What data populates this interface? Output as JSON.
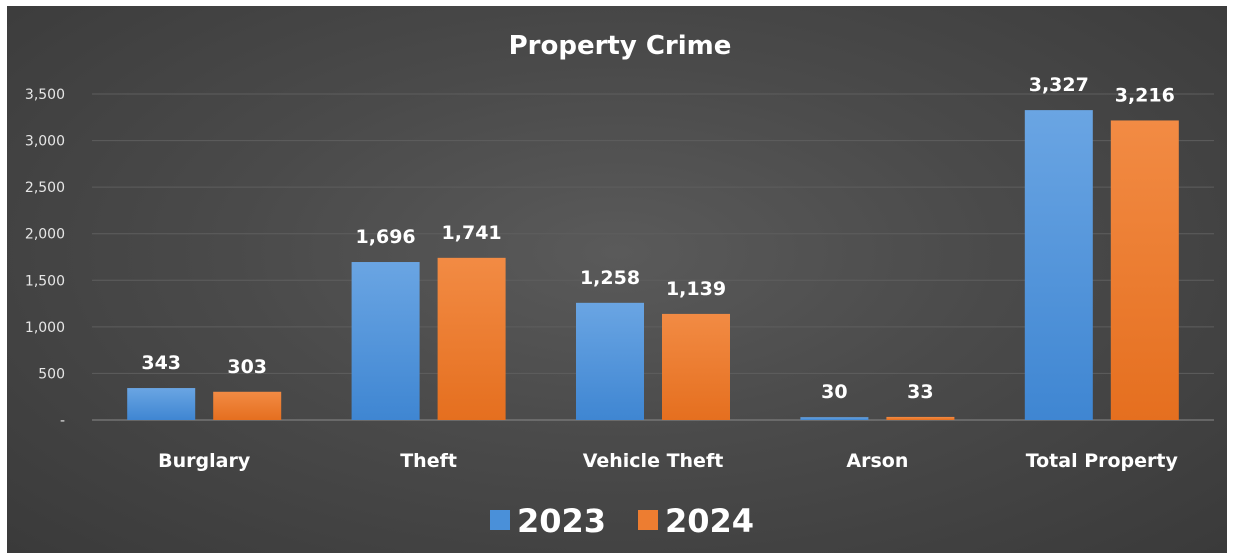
{
  "chart_data": {
    "type": "bar",
    "title": "Property Crime",
    "categories": [
      "Burglary",
      "Theft",
      "Vehicle Theft",
      "Arson",
      "Total Property"
    ],
    "series": [
      {
        "name": "2023",
        "values": [
          343,
          1696,
          1258,
          30,
          3327
        ],
        "color": "#4a90d9"
      },
      {
        "name": "2024",
        "values": [
          303,
          1741,
          1139,
          33,
          3216
        ],
        "color": "#ed7d31"
      }
    ],
    "y_ticks": [
      0,
      500,
      1000,
      1500,
      2000,
      2500,
      3000,
      3500
    ],
    "y_tick_labels": [
      "-",
      "500",
      "1,000",
      "1,500",
      "2,000",
      "2,500",
      "3,000",
      "3,500"
    ],
    "ylim": [
      0,
      3500
    ],
    "xlabel": "",
    "ylabel": "",
    "grid": true,
    "legend_position": "bottom",
    "data_labels": true,
    "background_color": "#404040"
  }
}
